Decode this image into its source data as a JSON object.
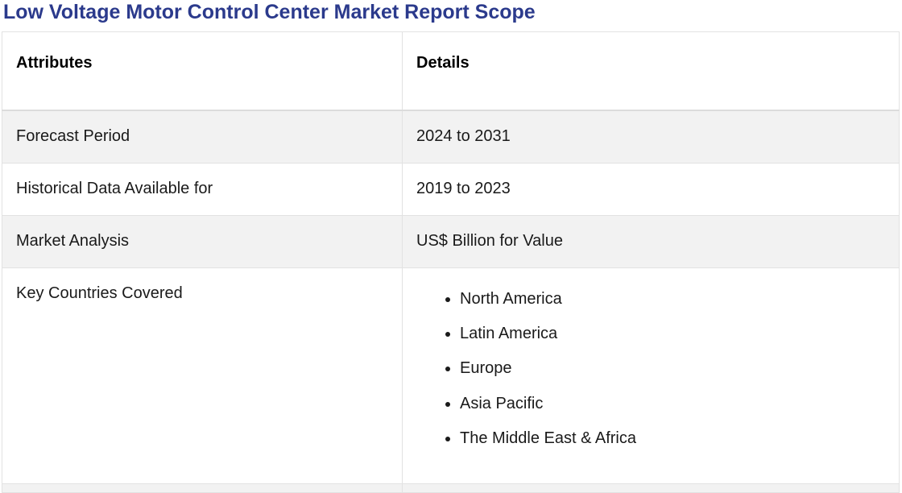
{
  "title": "Low Voltage Motor Control Center Market Report Scope",
  "table": {
    "headers": [
      "Attributes",
      "Details"
    ],
    "rows": [
      {
        "attribute": "Forecast Period",
        "detail": "2024 to 2031"
      },
      {
        "attribute": "Historical Data Available for",
        "detail": "2019 to 2023"
      },
      {
        "attribute": "Market Analysis",
        "detail": "US$ Billion for Value"
      },
      {
        "attribute": "Key Countries Covered",
        "list": [
          "North America",
          "Latin America",
          "Europe",
          "Asia Pacific",
          "The Middle East & Africa"
        ]
      }
    ]
  },
  "colors": {
    "title": "#2b3a8c",
    "shaded_row": "#f2f2f2",
    "border": "#e2e2e2"
  }
}
